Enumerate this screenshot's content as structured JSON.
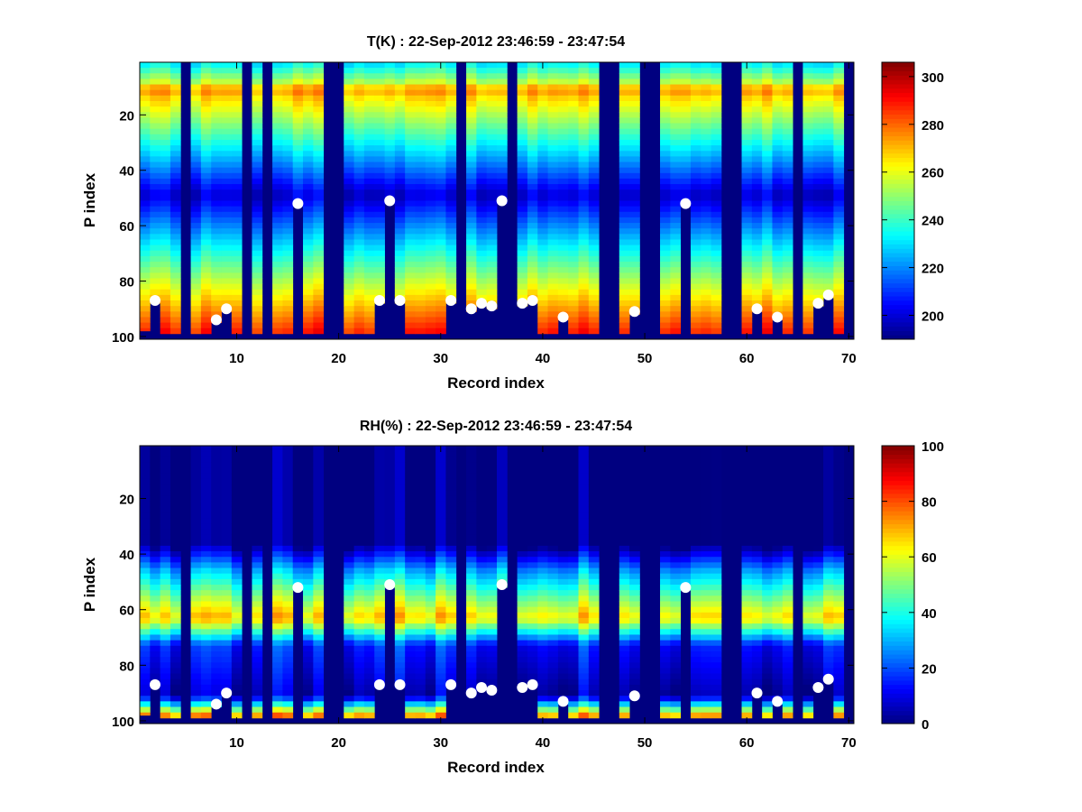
{
  "chart_data": [
    {
      "type": "heatmap",
      "title": "T(K) : 22-Sep-2012 23:46:59 - 23:47:54",
      "xlabel": "Record index",
      "ylabel": "P index",
      "xlim": [
        0.5,
        70.5
      ],
      "ylim": [
        1,
        101
      ],
      "y_reversed": true,
      "colormap": "jet",
      "xticks": [
        10,
        20,
        30,
        40,
        50,
        60,
        70
      ],
      "yticks": [
        20,
        40,
        60,
        80,
        100
      ],
      "colorbar": {
        "range": [
          190,
          306
        ],
        "ticks": [
          200,
          220,
          240,
          260,
          280,
          300
        ]
      },
      "profile_bottom_p": [
        97,
        87,
        98,
        98,
        0,
        98,
        98,
        94,
        90,
        98,
        0,
        98,
        0,
        98,
        98,
        52,
        98,
        98,
        0,
        0,
        98,
        98,
        98,
        87,
        51,
        87,
        98,
        98,
        98,
        98,
        87,
        0,
        90,
        88,
        89,
        51,
        0,
        88,
        87,
        98,
        98,
        93,
        98,
        98,
        98,
        0,
        0,
        98,
        91,
        0,
        0,
        98,
        98,
        52,
        98,
        98,
        98,
        0,
        0,
        98,
        90,
        98,
        93,
        98,
        0,
        98,
        88,
        85,
        98,
        0
      ],
      "surface_points": [
        {
          "x": 2,
          "y": 87
        },
        {
          "x": 8,
          "y": 94
        },
        {
          "x": 9,
          "y": 90
        },
        {
          "x": 16,
          "y": 52
        },
        {
          "x": 24,
          "y": 87
        },
        {
          "x": 25,
          "y": 51
        },
        {
          "x": 26,
          "y": 87
        },
        {
          "x": 31,
          "y": 87
        },
        {
          "x": 33,
          "y": 90
        },
        {
          "x": 34,
          "y": 88
        },
        {
          "x": 35,
          "y": 89
        },
        {
          "x": 36,
          "y": 51
        },
        {
          "x": 38,
          "y": 88
        },
        {
          "x": 39,
          "y": 87
        },
        {
          "x": 42,
          "y": 93
        },
        {
          "x": 49,
          "y": 91
        },
        {
          "x": 54,
          "y": 52
        },
        {
          "x": 61,
          "y": 90
        },
        {
          "x": 63,
          "y": 93
        },
        {
          "x": 67,
          "y": 88
        },
        {
          "x": 68,
          "y": 85
        }
      ]
    },
    {
      "type": "heatmap",
      "title": "RH(%) : 22-Sep-2012 23:46:59 - 23:47:54",
      "xlabel": "Record index",
      "ylabel": "P index",
      "xlim": [
        0.5,
        70.5
      ],
      "ylim": [
        1,
        101
      ],
      "y_reversed": true,
      "colormap": "jet",
      "xticks": [
        10,
        20,
        30,
        40,
        50,
        60,
        70
      ],
      "yticks": [
        20,
        40,
        60,
        80,
        100
      ],
      "colorbar": {
        "range": [
          0,
          100
        ],
        "ticks": [
          0,
          20,
          40,
          60,
          80,
          100
        ]
      },
      "profile_bottom_p": [
        97,
        87,
        98,
        98,
        0,
        98,
        98,
        94,
        90,
        98,
        0,
        98,
        0,
        98,
        98,
        52,
        98,
        98,
        0,
        0,
        98,
        98,
        98,
        87,
        51,
        87,
        98,
        98,
        98,
        98,
        87,
        0,
        90,
        88,
        89,
        51,
        0,
        88,
        87,
        98,
        98,
        93,
        98,
        98,
        98,
        0,
        0,
        98,
        91,
        0,
        0,
        98,
        98,
        52,
        98,
        98,
        98,
        0,
        0,
        98,
        90,
        98,
        93,
        98,
        0,
        98,
        88,
        85,
        98,
        0
      ],
      "surface_points": [
        {
          "x": 2,
          "y": 87
        },
        {
          "x": 8,
          "y": 94
        },
        {
          "x": 9,
          "y": 90
        },
        {
          "x": 16,
          "y": 52
        },
        {
          "x": 24,
          "y": 87
        },
        {
          "x": 25,
          "y": 51
        },
        {
          "x": 26,
          "y": 87
        },
        {
          "x": 31,
          "y": 87
        },
        {
          "x": 33,
          "y": 90
        },
        {
          "x": 34,
          "y": 88
        },
        {
          "x": 35,
          "y": 89
        },
        {
          "x": 36,
          "y": 51
        },
        {
          "x": 38,
          "y": 88
        },
        {
          "x": 39,
          "y": 87
        },
        {
          "x": 42,
          "y": 93
        },
        {
          "x": 49,
          "y": 91
        },
        {
          "x": 54,
          "y": 52
        },
        {
          "x": 61,
          "y": 90
        },
        {
          "x": 63,
          "y": 93
        },
        {
          "x": 67,
          "y": 88
        },
        {
          "x": 68,
          "y": 85
        }
      ]
    }
  ]
}
